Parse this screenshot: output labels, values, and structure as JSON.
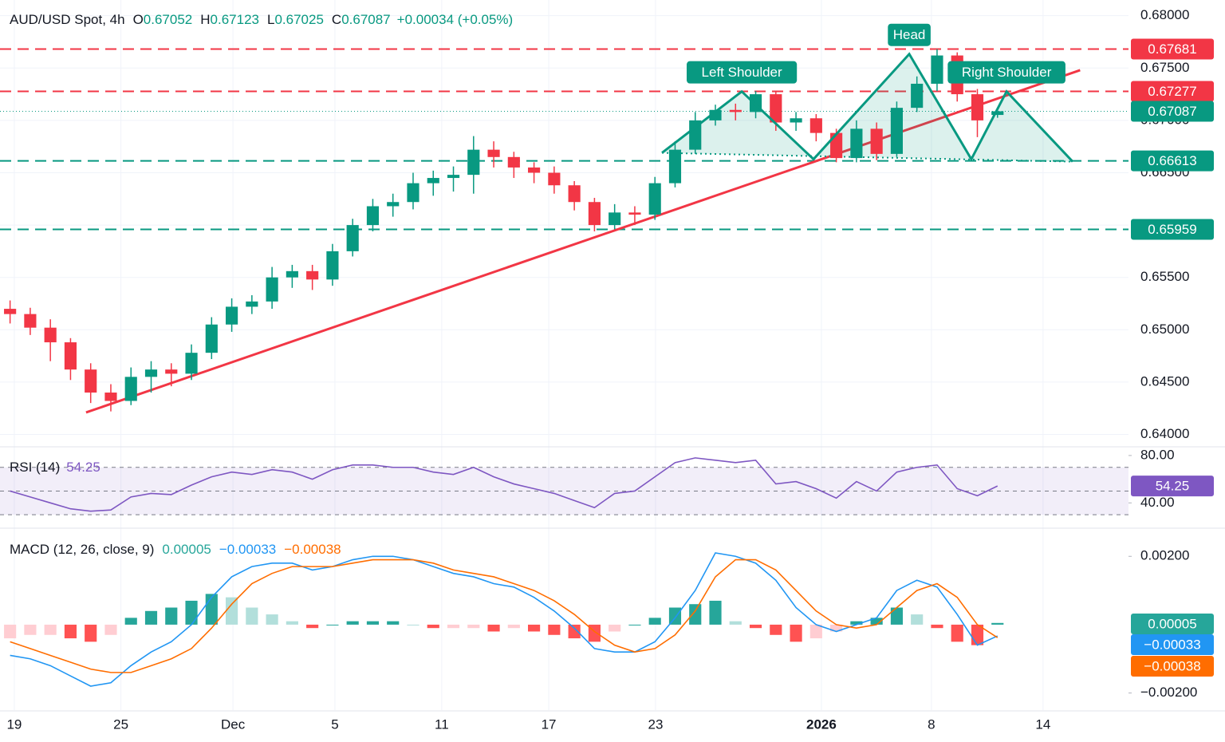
{
  "chart_data": [
    {
      "type": "candlestick",
      "title": "AUD/USD Spot, 4h",
      "ohlc": [
        {
          "key": "O",
          "value": "0.67052"
        },
        {
          "key": "H",
          "value": "0.67123"
        },
        {
          "key": "L",
          "value": "0.67025"
        },
        {
          "key": "C",
          "value": "0.67087"
        }
      ],
      "change": "+0.00034 (+0.05%)",
      "up_color": "#089981",
      "down_color": "#f23645",
      "x": [
        0,
        1,
        2,
        3,
        4,
        5,
        6,
        7,
        8,
        9,
        10,
        11,
        12,
        13,
        14,
        15,
        16,
        17,
        18,
        19,
        20,
        21,
        22,
        23,
        24,
        25,
        26,
        27,
        28,
        29,
        30,
        31,
        32,
        33,
        34,
        35,
        36,
        37,
        38,
        39,
        40,
        41,
        42,
        43,
        44,
        45,
        46,
        47,
        48,
        49
      ],
      "open": [
        0.652,
        0.6515,
        0.6502,
        0.6488,
        0.6462,
        0.644,
        0.6432,
        0.6455,
        0.6462,
        0.6458,
        0.6478,
        0.6505,
        0.6522,
        0.6527,
        0.655,
        0.6556,
        0.6548,
        0.6575,
        0.66,
        0.6618,
        0.6622,
        0.664,
        0.6645,
        0.6648,
        0.6672,
        0.6665,
        0.6655,
        0.665,
        0.6638,
        0.6622,
        0.66,
        0.6612,
        0.661,
        0.664,
        0.6672,
        0.67,
        0.671,
        0.6708,
        0.6725,
        0.6698,
        0.6702,
        0.6688,
        0.6664,
        0.6692,
        0.6668,
        0.6712,
        0.6735,
        0.6762,
        0.6725,
        0.67052
      ],
      "high": [
        0.6528,
        0.6521,
        0.651,
        0.6492,
        0.6468,
        0.6448,
        0.6464,
        0.647,
        0.6468,
        0.6486,
        0.6512,
        0.653,
        0.6533,
        0.656,
        0.6562,
        0.6562,
        0.6582,
        0.6606,
        0.6625,
        0.663,
        0.665,
        0.6652,
        0.6656,
        0.6685,
        0.668,
        0.667,
        0.666,
        0.6656,
        0.6642,
        0.6626,
        0.662,
        0.6618,
        0.6646,
        0.668,
        0.6708,
        0.6715,
        0.6716,
        0.6728,
        0.6728,
        0.6708,
        0.6706,
        0.6692,
        0.67,
        0.6698,
        0.6718,
        0.6742,
        0.6768,
        0.6765,
        0.673,
        0.67123
      ],
      "low": [
        0.6506,
        0.6495,
        0.647,
        0.6452,
        0.643,
        0.6422,
        0.6428,
        0.644,
        0.6446,
        0.6452,
        0.6472,
        0.6498,
        0.6515,
        0.652,
        0.654,
        0.6538,
        0.6542,
        0.657,
        0.6594,
        0.6608,
        0.6615,
        0.6628,
        0.6632,
        0.663,
        0.6655,
        0.6645,
        0.664,
        0.663,
        0.6614,
        0.6594,
        0.6596,
        0.66,
        0.6605,
        0.6636,
        0.6668,
        0.6695,
        0.67,
        0.6702,
        0.669,
        0.669,
        0.668,
        0.666,
        0.666,
        0.6662,
        0.6665,
        0.6708,
        0.6728,
        0.6718,
        0.6684,
        0.67025
      ],
      "close": [
        0.6515,
        0.6502,
        0.6488,
        0.6462,
        0.644,
        0.6432,
        0.6455,
        0.6462,
        0.6458,
        0.6478,
        0.6505,
        0.6522,
        0.6527,
        0.655,
        0.6556,
        0.6548,
        0.6575,
        0.66,
        0.6618,
        0.6622,
        0.664,
        0.6645,
        0.6648,
        0.6672,
        0.6665,
        0.6655,
        0.665,
        0.6638,
        0.6622,
        0.66,
        0.6612,
        0.661,
        0.664,
        0.6672,
        0.67,
        0.671,
        0.6708,
        0.6725,
        0.6698,
        0.6702,
        0.6688,
        0.6664,
        0.6692,
        0.6668,
        0.6712,
        0.6735,
        0.6762,
        0.6725,
        0.67,
        0.67087
      ],
      "xlim": [
        -0.5,
        55.5
      ],
      "xticks": [
        {
          "value": 0.21,
          "label": "19"
        },
        {
          "value": 5.5,
          "label": "25"
        },
        {
          "value": 11.06,
          "label": "Dec"
        },
        {
          "value": 16.12,
          "label": "5"
        },
        {
          "value": 21.42,
          "label": "11"
        },
        {
          "value": 26.73,
          "label": "17"
        },
        {
          "value": 32.03,
          "label": "23"
        },
        {
          "value": 40.26,
          "label": "2026"
        },
        {
          "value": 45.72,
          "label": "8"
        },
        {
          "value": 51.26,
          "label": "14"
        }
      ],
      "ylim": [
        0.6392,
        0.6815
      ],
      "yticks": [
        {
          "value": 0.64,
          "label": "0.64000"
        },
        {
          "value": 0.645,
          "label": "0.64500"
        },
        {
          "value": 0.65,
          "label": "0.65000"
        },
        {
          "value": 0.655,
          "label": "0.65500"
        },
        {
          "value": 0.66,
          "label": "0.66000"
        },
        {
          "value": 0.665,
          "label": "0.66500"
        },
        {
          "value": 0.67,
          "label": "0.67000"
        },
        {
          "value": 0.675,
          "label": "0.67500"
        },
        {
          "value": 0.68,
          "label": "0.68000"
        }
      ],
      "levels": [
        {
          "value": 0.67681,
          "label": "0.67681",
          "color": "#f23645"
        },
        {
          "value": 0.67277,
          "label": "0.67277",
          "color": "#f23645"
        },
        {
          "value": 0.66613,
          "label": "0.66613",
          "color": "#089981"
        },
        {
          "value": 0.65959,
          "label": "0.65959",
          "color": "#089981"
        }
      ],
      "current": {
        "value": 0.67087,
        "label": "0.67087",
        "color": "#089981"
      },
      "trendline": {
        "x": [
          3.77,
          53.1
        ],
        "y": [
          0.6421,
          0.6748
        ],
        "color": "#f23645"
      },
      "pattern": {
        "color": "#089981",
        "x": [
          32.35,
          36.31,
          39.87,
          44.62,
          47.7,
          49.45,
          52.73
        ],
        "y": [
          0.6669,
          0.67276,
          0.66629,
          0.67634,
          0.66629,
          0.67276,
          0.66606
        ],
        "labels": [
          "Left Shoulder",
          "Head",
          "Right Shoulder"
        ]
      }
    },
    {
      "type": "rsi",
      "title": "RSI (14)",
      "value_label": "54.25",
      "color": "#7e57c2",
      "values": [
        50,
        45,
        40,
        35,
        33,
        34,
        45,
        48,
        47,
        55,
        62,
        66,
        64,
        68,
        66,
        60,
        68,
        72,
        72,
        70,
        70,
        66,
        64,
        70,
        62,
        56,
        52,
        48,
        42,
        36,
        48,
        50,
        62,
        74,
        78,
        76,
        74,
        76,
        56,
        58,
        52,
        44,
        58,
        50,
        66,
        70,
        72,
        52,
        46,
        54.25
      ],
      "ylim": [
        20,
        86
      ],
      "yticks": [
        {
          "value": 80,
          "label": "80.00"
        },
        {
          "value": 40,
          "label": "40.00"
        }
      ],
      "levels": [
        30,
        50,
        70
      ]
    },
    {
      "type": "macd",
      "title": "MACD (12, 26, close, 9)",
      "histogram": {
        "label": "0.00005",
        "color": "#26a69a",
        "values": [
          -0.0004,
          -0.0003,
          -0.0003,
          -0.0004,
          -0.0005,
          -0.0003,
          0.0002,
          0.0004,
          0.0005,
          0.0007,
          0.0009,
          0.0008,
          0.0005,
          0.0003,
          0.0001,
          -0.0001,
          0,
          0.0001,
          0.0001,
          0.0001,
          0,
          -0.0001,
          -0.0001,
          -0.0001,
          -0.0002,
          -0.0001,
          -0.0002,
          -0.0003,
          -0.0004,
          -0.0005,
          -0.0002,
          0,
          0.0002,
          0.0005,
          0.0006,
          0.0007,
          0.0001,
          -0.0001,
          -0.0003,
          -0.0005,
          -0.0004,
          -0.0002,
          0.0001,
          0.0002,
          0.0005,
          0.0003,
          -0.0001,
          -0.0005,
          -0.0006,
          5e-05
        ]
      },
      "macd": {
        "label": "−0.00033",
        "color": "#2196f3",
        "values": [
          -0.0009,
          -0.001,
          -0.0012,
          -0.0015,
          -0.0018,
          -0.0017,
          -0.0012,
          -0.0008,
          -0.0005,
          0.0,
          0.0008,
          0.0014,
          0.0017,
          0.0018,
          0.0018,
          0.0016,
          0.0017,
          0.0019,
          0.002,
          0.002,
          0.0019,
          0.0017,
          0.0015,
          0.0014,
          0.0012,
          0.0011,
          0.0008,
          0.0004,
          -0.0001,
          -0.0007,
          -0.0008,
          -0.0008,
          -0.0005,
          0.0002,
          0.001,
          0.0021,
          0.002,
          0.0018,
          0.0013,
          0.0005,
          0.0,
          -0.0002,
          0.0,
          0.0002,
          0.001,
          0.0013,
          0.0011,
          0.0003,
          -0.0006,
          -0.00033
        ]
      },
      "signal": {
        "label": "−0.00038",
        "color": "#ff6d00",
        "values": [
          -0.0005,
          -0.0007,
          -0.0009,
          -0.0011,
          -0.0013,
          -0.0014,
          -0.0014,
          -0.0012,
          -0.001,
          -0.0007,
          -0.0001,
          0.0006,
          0.0012,
          0.0015,
          0.0017,
          0.0017,
          0.0017,
          0.0018,
          0.0019,
          0.0019,
          0.0019,
          0.0018,
          0.0016,
          0.0015,
          0.0014,
          0.0012,
          0.001,
          0.0007,
          0.0003,
          -0.0002,
          -0.0006,
          -0.0008,
          -0.0007,
          -0.0003,
          0.0004,
          0.0014,
          0.0019,
          0.0019,
          0.0016,
          0.001,
          0.0004,
          0.0,
          -0.0001,
          0.0,
          0.0005,
          0.001,
          0.0012,
          0.0008,
          0.0,
          -0.00038
        ]
      },
      "ylim": [
        -0.0025,
        0.0028
      ],
      "yticks": [
        {
          "value": 0.002,
          "label": "0.00200"
        },
        {
          "value": -0.002,
          "label": "−0.00200"
        }
      ]
    }
  ]
}
